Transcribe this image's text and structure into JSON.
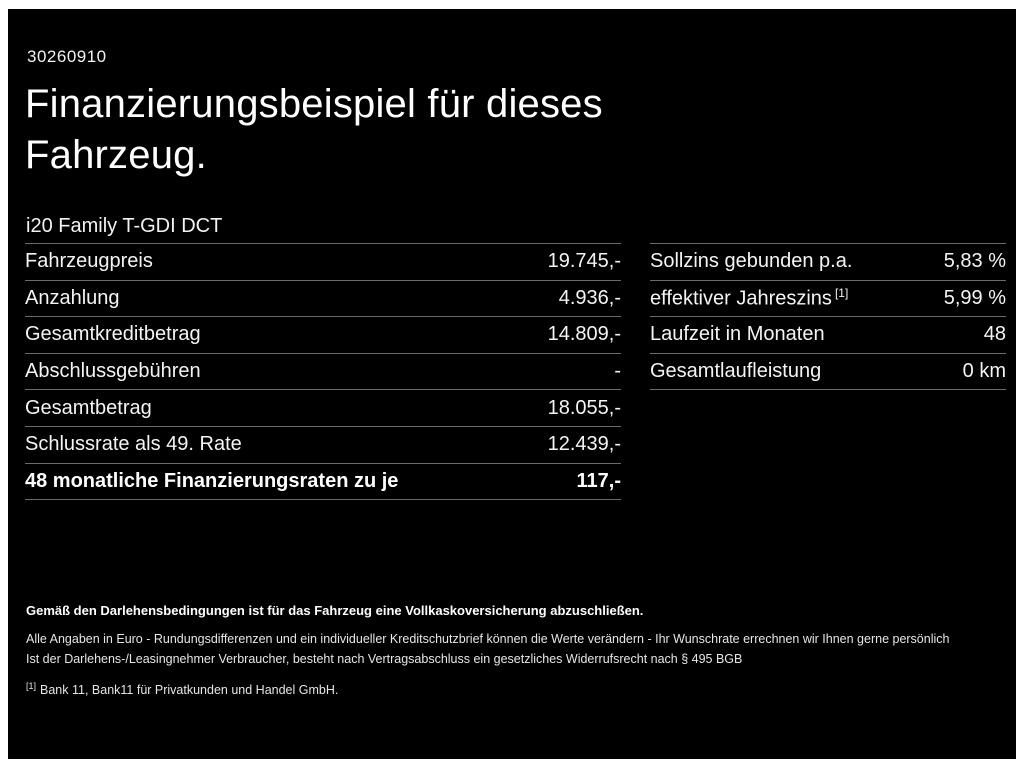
{
  "page": {
    "doc_id": "30260910",
    "title_line1": "Finanzierungsbeispiel für dieses",
    "title_line2": "Fahrzeug.",
    "vehicle_model": "i20 Family T-GDI DCT"
  },
  "left_table": {
    "rows": [
      {
        "label": "Fahrzeugpreis",
        "value": "19.745,-",
        "bold": false
      },
      {
        "label": "Anzahlung",
        "value": "4.936,-",
        "bold": false
      },
      {
        "label": "Gesamtkreditbetrag",
        "value": "14.809,-",
        "bold": false
      },
      {
        "label": "Abschlussgebühren",
        "value": "-",
        "bold": false
      },
      {
        "label": "Gesamtbetrag",
        "value": "18.055,-",
        "bold": false
      },
      {
        "label": "Schlussrate als 49. Rate",
        "value": "12.439,-",
        "bold": false
      },
      {
        "label": "48 monatliche Finanzierungsraten zu je",
        "value": "117,-",
        "bold": true
      }
    ]
  },
  "right_table": {
    "rows": [
      {
        "label": "Sollzins gebunden p.a.",
        "value": "5,83 %",
        "bold": false
      },
      {
        "label": "effektiver Jahreszins",
        "label_sup": "[1]",
        "value": "5,99 %",
        "bold": false
      },
      {
        "label": "Laufzeit in Monaten",
        "value": "48",
        "bold": false
      },
      {
        "label": "Gesamtlaufleistung",
        "value": "0 km",
        "bold": false
      }
    ]
  },
  "footer": {
    "bold_note": "Gemäß den Darlehensbedingungen ist für das Fahrzeug eine Vollkaskoversicherung abzuschließen.",
    "note1": "Alle Angaben in Euro - Rundungsdifferenzen und ein individueller Kreditschutzbrief können die Werte verändern - Ihr Wunschrate errechnen wir Ihnen gerne persönlich",
    "note2": "Ist der Darlehens-/Leasingnehmer Verbraucher, besteht nach Vertragsabschluss ein gesetzliches Widerrufsrecht nach § 495 BGB",
    "footnote_marker": "[1]",
    "footnote_text": "Bank 11, Bank11 für Privatkunden und Handel GmbH."
  },
  "colors": {
    "background": "#000000",
    "text": "#ffffff",
    "divider": "#6b6b6b"
  }
}
